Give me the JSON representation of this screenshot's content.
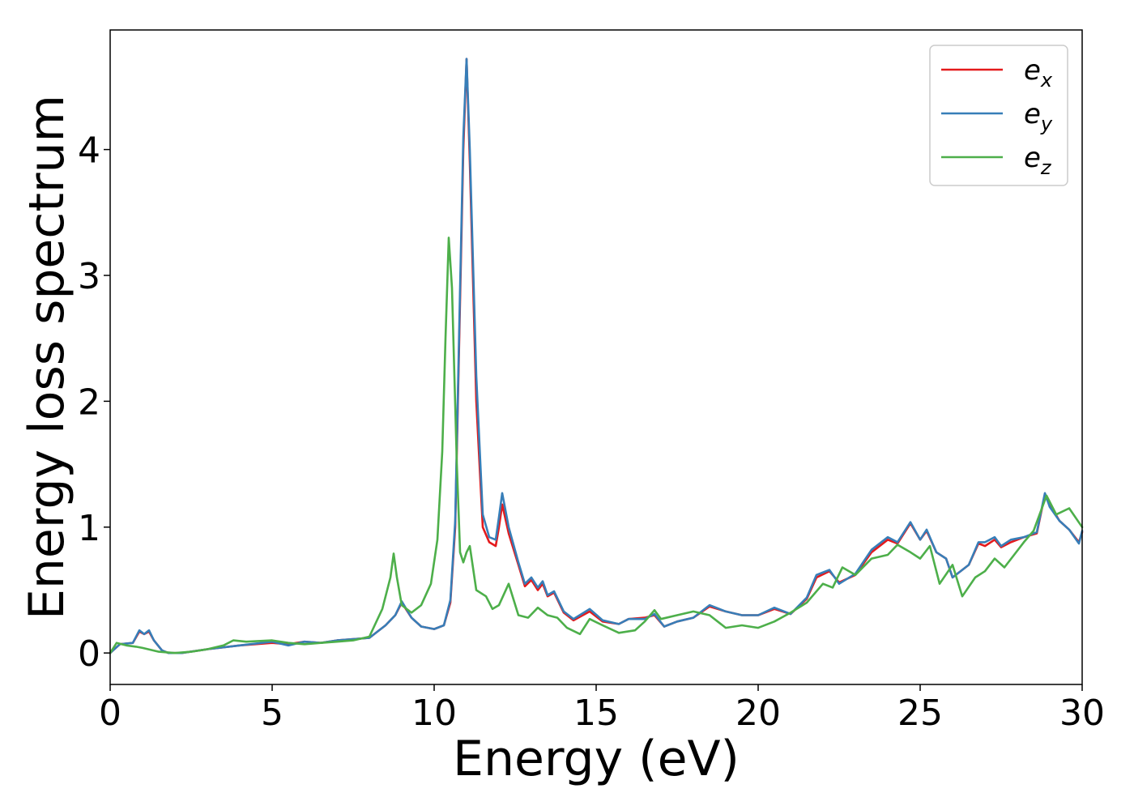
{
  "chart_data": {
    "type": "line",
    "xlabel": "Energy (eV)",
    "ylabel": "Energy loss spectrum",
    "xlim": [
      0,
      30
    ],
    "ylim": [
      -0.25,
      4.95
    ],
    "xticks": [
      0,
      5,
      10,
      15,
      20,
      25,
      30
    ],
    "yticks": [
      0,
      1,
      2,
      3,
      4
    ],
    "grid": false,
    "legend_position": "top-right",
    "series": [
      {
        "name": "e_x",
        "label_main": "e",
        "label_sub": "x",
        "color": "#e41a1c",
        "x": [
          0,
          0.3,
          0.7,
          0.9,
          1.05,
          1.2,
          1.35,
          1.6,
          1.8,
          2.2,
          3,
          4,
          5,
          5.5,
          6,
          6.5,
          7,
          7.5,
          8,
          8.5,
          8.8,
          9.0,
          9.3,
          9.6,
          10.0,
          10.3,
          10.5,
          10.65,
          10.8,
          10.9,
          11.0,
          11.1,
          11.3,
          11.5,
          11.7,
          11.9,
          12.0,
          12.1,
          12.3,
          12.6,
          12.8,
          13.0,
          13.2,
          13.35,
          13.5,
          13.7,
          14.0,
          14.3,
          14.8,
          15.2,
          15.7,
          16.0,
          16.5,
          16.8,
          17.1,
          17.5,
          18.0,
          18.5,
          19.0,
          19.5,
          20.0,
          20.5,
          21.0,
          21.5,
          21.8,
          22.2,
          22.5,
          23.0,
          23.5,
          24.0,
          24.3,
          24.7,
          25.0,
          25.2,
          25.5,
          25.8,
          26.0,
          26.5,
          26.8,
          27.0,
          27.3,
          27.5,
          27.8,
          28.2,
          28.6,
          28.85,
          29.0,
          29.3,
          29.6,
          29.9,
          30.0
        ],
        "y": [
          0.0,
          0.07,
          0.08,
          0.17,
          0.15,
          0.17,
          0.1,
          0.02,
          0.0,
          0.0,
          0.03,
          0.06,
          0.08,
          0.07,
          0.09,
          0.08,
          0.1,
          0.11,
          0.12,
          0.22,
          0.3,
          0.4,
          0.28,
          0.21,
          0.19,
          0.22,
          0.4,
          1.0,
          2.8,
          4.0,
          4.72,
          3.9,
          2.0,
          1.0,
          0.88,
          0.85,
          1.0,
          1.18,
          0.95,
          0.7,
          0.53,
          0.58,
          0.5,
          0.55,
          0.45,
          0.48,
          0.32,
          0.26,
          0.33,
          0.25,
          0.23,
          0.27,
          0.28,
          0.3,
          0.21,
          0.25,
          0.28,
          0.37,
          0.33,
          0.3,
          0.3,
          0.35,
          0.31,
          0.43,
          0.6,
          0.65,
          0.56,
          0.62,
          0.8,
          0.9,
          0.87,
          1.03,
          0.9,
          0.97,
          0.8,
          0.75,
          0.6,
          0.7,
          0.87,
          0.85,
          0.9,
          0.84,
          0.88,
          0.92,
          0.95,
          1.26,
          1.18,
          1.05,
          0.98,
          0.88,
          0.96
        ]
      },
      {
        "name": "e_y",
        "label_main": "e",
        "label_sub": "y",
        "color": "#377eb8",
        "x": [
          0,
          0.3,
          0.7,
          0.9,
          1.05,
          1.2,
          1.35,
          1.6,
          1.8,
          2.2,
          3,
          4,
          5,
          5.5,
          6,
          6.5,
          7,
          7.5,
          8,
          8.5,
          8.8,
          9.0,
          9.3,
          9.6,
          10.0,
          10.3,
          10.5,
          10.65,
          10.8,
          10.9,
          11.0,
          11.1,
          11.3,
          11.5,
          11.7,
          11.9,
          12.0,
          12.1,
          12.3,
          12.6,
          12.8,
          13.0,
          13.2,
          13.35,
          13.5,
          13.7,
          14.0,
          14.3,
          14.8,
          15.2,
          15.7,
          16.0,
          16.5,
          16.8,
          17.1,
          17.5,
          18.0,
          18.5,
          19.0,
          19.5,
          20.0,
          20.5,
          21.0,
          21.5,
          21.8,
          22.2,
          22.5,
          23.0,
          23.5,
          24.0,
          24.3,
          24.7,
          25.0,
          25.2,
          25.5,
          25.8,
          26.0,
          26.5,
          26.8,
          27.0,
          27.3,
          27.5,
          27.8,
          28.2,
          28.6,
          28.85,
          29.0,
          29.3,
          29.6,
          29.9,
          30.0
        ],
        "y": [
          0.0,
          0.07,
          0.08,
          0.18,
          0.15,
          0.18,
          0.1,
          0.02,
          0.0,
          0.0,
          0.03,
          0.06,
          0.09,
          0.06,
          0.09,
          0.08,
          0.1,
          0.11,
          0.12,
          0.22,
          0.3,
          0.41,
          0.28,
          0.21,
          0.19,
          0.22,
          0.42,
          1.05,
          2.9,
          4.1,
          4.72,
          4.0,
          2.2,
          1.1,
          0.92,
          0.9,
          1.08,
          1.27,
          1.0,
          0.72,
          0.55,
          0.6,
          0.52,
          0.57,
          0.46,
          0.49,
          0.33,
          0.27,
          0.35,
          0.26,
          0.23,
          0.27,
          0.27,
          0.31,
          0.21,
          0.25,
          0.28,
          0.38,
          0.33,
          0.3,
          0.3,
          0.36,
          0.31,
          0.44,
          0.62,
          0.66,
          0.55,
          0.63,
          0.82,
          0.92,
          0.88,
          1.04,
          0.9,
          0.98,
          0.8,
          0.75,
          0.6,
          0.7,
          0.88,
          0.88,
          0.92,
          0.85,
          0.9,
          0.92,
          0.96,
          1.27,
          1.16,
          1.05,
          0.98,
          0.87,
          0.97
        ]
      },
      {
        "name": "e_z",
        "label_main": "e",
        "label_sub": "z",
        "color": "#4daf4a",
        "x": [
          0,
          0.2,
          0.5,
          0.8,
          1.0,
          1.5,
          2.0,
          2.5,
          3.0,
          3.5,
          3.8,
          4.2,
          5.0,
          5.5,
          6.0,
          6.5,
          7.0,
          7.5,
          8.0,
          8.4,
          8.65,
          8.75,
          8.85,
          9.0,
          9.3,
          9.6,
          9.9,
          10.1,
          10.25,
          10.35,
          10.45,
          10.55,
          10.7,
          10.8,
          10.9,
          11.0,
          11.1,
          11.3,
          11.6,
          11.8,
          12.0,
          12.3,
          12.6,
          12.9,
          13.2,
          13.5,
          13.8,
          14.1,
          14.5,
          14.8,
          15.2,
          15.7,
          16.2,
          16.5,
          16.8,
          17.0,
          17.5,
          18.0,
          18.5,
          19.0,
          19.5,
          20.0,
          20.5,
          21.0,
          21.5,
          22.0,
          22.3,
          22.6,
          23.0,
          23.5,
          24.0,
          24.3,
          24.7,
          25.0,
          25.3,
          25.6,
          26.0,
          26.3,
          26.7,
          27.0,
          27.3,
          27.6,
          27.9,
          28.2,
          28.5,
          28.9,
          29.2,
          29.6,
          30.0
        ],
        "y": [
          0.0,
          0.08,
          0.06,
          0.05,
          0.04,
          0.01,
          0.0,
          0.01,
          0.03,
          0.06,
          0.1,
          0.09,
          0.1,
          0.08,
          0.07,
          0.08,
          0.09,
          0.1,
          0.13,
          0.35,
          0.6,
          0.79,
          0.6,
          0.38,
          0.32,
          0.38,
          0.55,
          0.9,
          1.6,
          2.5,
          3.3,
          2.9,
          1.5,
          0.8,
          0.72,
          0.8,
          0.85,
          0.5,
          0.45,
          0.35,
          0.38,
          0.55,
          0.3,
          0.28,
          0.36,
          0.3,
          0.28,
          0.2,
          0.15,
          0.27,
          0.22,
          0.16,
          0.18,
          0.25,
          0.34,
          0.27,
          0.3,
          0.33,
          0.3,
          0.2,
          0.22,
          0.2,
          0.25,
          0.32,
          0.4,
          0.55,
          0.52,
          0.68,
          0.62,
          0.75,
          0.78,
          0.86,
          0.8,
          0.75,
          0.85,
          0.55,
          0.7,
          0.45,
          0.6,
          0.65,
          0.75,
          0.68,
          0.78,
          0.88,
          0.97,
          1.25,
          1.1,
          1.15,
          1.0
        ]
      }
    ]
  }
}
